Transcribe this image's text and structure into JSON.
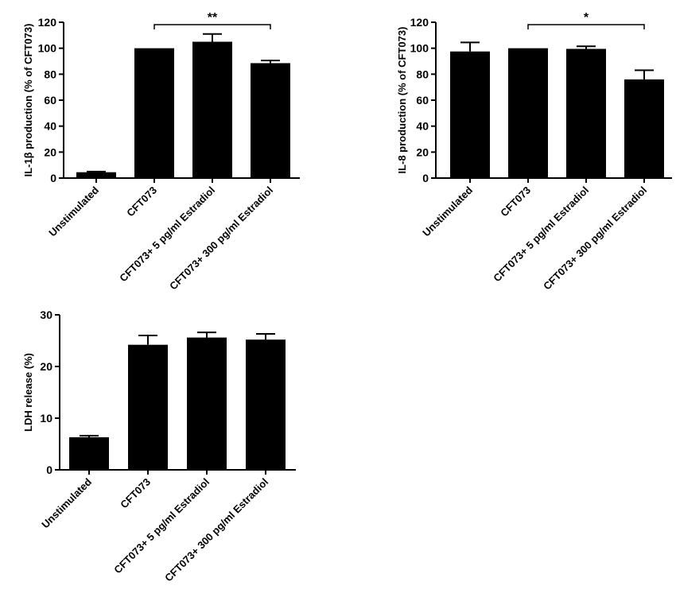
{
  "chart_data": [
    {
      "type": "bar",
      "ylabel": "IL-1β production (% of CFT073)",
      "categories": [
        "Unstimulated",
        "CFT073",
        "CFT073+ 5 pg/ml Estradiol",
        "CFT073+ 300 pg/ml Estradiol"
      ],
      "values": [
        4.5,
        100,
        105,
        88.5
      ],
      "errors": [
        0.5,
        0,
        6,
        2
      ],
      "ylim": [
        0,
        120
      ],
      "yticks": [
        0,
        20,
        40,
        60,
        80,
        100,
        120
      ],
      "significance": {
        "from": 1,
        "to": 3,
        "label": "**"
      }
    },
    {
      "type": "bar",
      "ylabel": "IL-8 production (% of CFT073)",
      "categories": [
        "Unstimulated",
        "CFT073",
        "CFT073+ 5 pg/ml Estradiol",
        "CFT073+ 300 pg/ml Estradiol"
      ],
      "values": [
        97.5,
        100,
        99.5,
        76
      ],
      "errors": [
        7,
        0,
        2,
        7
      ],
      "ylim": [
        0,
        120
      ],
      "yticks": [
        0,
        20,
        40,
        60,
        80,
        100,
        120
      ],
      "significance": {
        "from": 1,
        "to": 3,
        "label": "*"
      }
    },
    {
      "type": "bar",
      "ylabel": "LDH release (%)",
      "categories": [
        "Unstimulated",
        "CFT073",
        "CFT073+ 5 pg/ml Estradiol",
        "CFT073+ 300 pg/ml Estradiol"
      ],
      "values": [
        6.3,
        24.2,
        25.6,
        25.2
      ],
      "errors": [
        0.3,
        1.8,
        1.0,
        1.1
      ],
      "ylim": [
        0,
        30
      ],
      "yticks": [
        0,
        10,
        20,
        30
      ],
      "significance": null
    }
  ]
}
